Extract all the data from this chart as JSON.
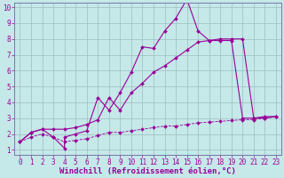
{
  "xlabel": "Windchill (Refroidissement éolien,°C)",
  "bg_color": "#c5e8e8",
  "line_color": "#990099",
  "grid_color": "#9dbebe",
  "spine_color": "#7777aa",
  "xlim": [
    -0.5,
    23.5
  ],
  "ylim": [
    0.7,
    10.3
  ],
  "xticks": [
    0,
    1,
    2,
    3,
    4,
    5,
    6,
    7,
    8,
    9,
    10,
    11,
    12,
    13,
    14,
    15,
    16,
    17,
    18,
    19,
    20,
    21,
    22,
    23
  ],
  "yticks": [
    1,
    2,
    3,
    4,
    5,
    6,
    7,
    8,
    9,
    10
  ],
  "line1_x": [
    0,
    1,
    2,
    3,
    4,
    4,
    5,
    6,
    7,
    8,
    9,
    10,
    11,
    12,
    13,
    14,
    15,
    16,
    17,
    18,
    19,
    20,
    21,
    22,
    23
  ],
  "line1_y": [
    1.5,
    2.1,
    2.3,
    1.8,
    1.1,
    1.8,
    2.0,
    2.2,
    4.3,
    3.5,
    4.6,
    5.9,
    7.5,
    7.4,
    8.5,
    9.3,
    10.5,
    8.5,
    7.9,
    7.9,
    7.9,
    3.0,
    3.0,
    3.1,
    3.1
  ],
  "line2_x": [
    0,
    1,
    2,
    3,
    4,
    5,
    6,
    7,
    8,
    9,
    10,
    11,
    12,
    13,
    14,
    15,
    16,
    17,
    18,
    19,
    20,
    21,
    22,
    23
  ],
  "line2_y": [
    1.5,
    2.1,
    2.3,
    2.3,
    2.3,
    2.4,
    2.6,
    2.9,
    4.3,
    3.5,
    4.6,
    5.2,
    5.9,
    6.3,
    6.8,
    7.3,
    7.8,
    7.9,
    8.0,
    8.0,
    8.0,
    3.0,
    3.0,
    3.1
  ],
  "line3_x": [
    0,
    1,
    2,
    3,
    4,
    5,
    6,
    7,
    8,
    9,
    10,
    11,
    12,
    13,
    14,
    15,
    16,
    17,
    18,
    19,
    20,
    21,
    22,
    23
  ],
  "line3_y": [
    1.5,
    1.8,
    2.0,
    1.8,
    1.5,
    1.6,
    1.7,
    1.9,
    2.1,
    2.1,
    2.2,
    2.3,
    2.4,
    2.5,
    2.5,
    2.6,
    2.7,
    2.75,
    2.8,
    2.85,
    2.9,
    2.9,
    3.0,
    3.1
  ],
  "tick_fontsize": 5.5,
  "xlabel_fontsize": 6.5,
  "marker_size": 2.0,
  "line_width": 0.8
}
